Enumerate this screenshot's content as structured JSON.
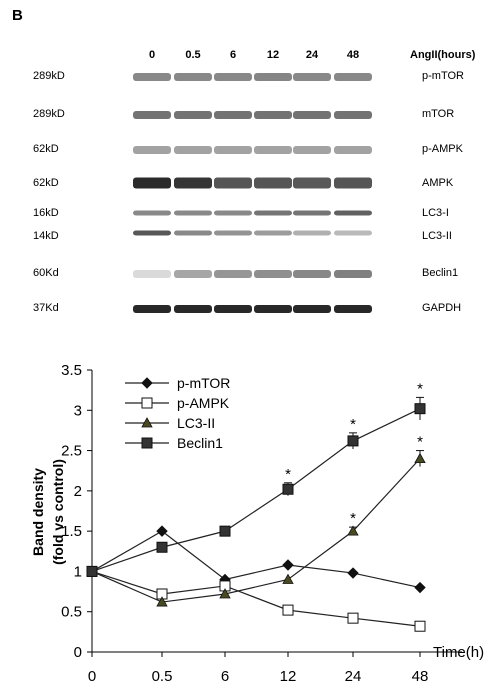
{
  "panel_letter": "B",
  "blot": {
    "header_label": "AngII(hours)",
    "lanes": [
      "0",
      "0.5",
      "6",
      "12",
      "24",
      "48"
    ],
    "rows": [
      {
        "mw": "289kD",
        "name": "p-mTOR",
        "intensity": [
          0.8,
          0.8,
          0.8,
          0.82,
          0.8,
          0.8
        ],
        "shade": "#6a6a6a"
      },
      {
        "mw": "289kD",
        "name": "mTOR",
        "intensity": [
          0.85,
          0.85,
          0.85,
          0.85,
          0.85,
          0.85
        ],
        "shade": "#5a5a5a"
      },
      {
        "mw": "62kD",
        "name": "p-AMPK",
        "intensity": [
          0.7,
          0.7,
          0.7,
          0.7,
          0.7,
          0.7
        ],
        "shade": "#7a7a7a"
      },
      {
        "mw": "62kD",
        "name": "AMPK",
        "intensity": [
          1.0,
          0.95,
          0.8,
          0.8,
          0.78,
          0.8
        ],
        "shade": "#2a2a2a"
      },
      {
        "mw": "16kD",
        "name": "LC3-I",
        "intensity": [
          0.6,
          0.6,
          0.6,
          0.7,
          0.7,
          0.8
        ],
        "shade": "#3a3a3a"
      },
      {
        "mw": "14kD",
        "name": "LC3-II",
        "intensity": [
          0.85,
          0.6,
          0.55,
          0.5,
          0.4,
          0.35
        ],
        "shade": "#3a3a3a"
      },
      {
        "mw": "60Kd",
        "name": "Beclin1",
        "intensity": [
          0.25,
          0.6,
          0.7,
          0.75,
          0.8,
          0.85
        ],
        "shade": "#6a6a6a"
      },
      {
        "mw": "37Kd",
        "name": "GAPDH",
        "intensity": [
          0.9,
          0.9,
          0.9,
          0.9,
          0.9,
          0.9
        ],
        "shade": "#111111"
      }
    ]
  },
  "chart_data": {
    "type": "line",
    "categories": [
      "0",
      "0.5",
      "6",
      "12",
      "24",
      "48"
    ],
    "xlabel": "Time(h)",
    "ylabel_lines": [
      "Band density",
      "(fold vs control)"
    ],
    "ylim": [
      0,
      3.5
    ],
    "yticks": [
      "0",
      "0.5",
      "1",
      "1.5",
      "2",
      "2.5",
      "3",
      "3.5"
    ],
    "grid": false,
    "legend_position": "top-left",
    "series": [
      {
        "name": "p-mTOR",
        "marker": "diamond",
        "values": [
          1.0,
          1.5,
          0.9,
          1.08,
          0.98,
          0.8
        ],
        "errors": [
          0,
          0,
          0,
          0,
          0,
          0
        ],
        "significant": [
          false,
          false,
          false,
          false,
          false,
          false
        ]
      },
      {
        "name": "p-AMPK",
        "marker": "square-open",
        "values": [
          1.0,
          0.72,
          0.82,
          0.52,
          0.42,
          0.32
        ],
        "errors": [
          0,
          0,
          0,
          0,
          0,
          0
        ],
        "significant": [
          false,
          false,
          false,
          false,
          false,
          false
        ]
      },
      {
        "name": "LC3-II",
        "marker": "triangle",
        "values": [
          1.0,
          0.62,
          0.72,
          0.9,
          1.5,
          2.4
        ],
        "errors": [
          0,
          0,
          0,
          0,
          0.05,
          0.1
        ],
        "significant": [
          false,
          false,
          false,
          false,
          true,
          true
        ]
      },
      {
        "name": "Beclin1",
        "marker": "square",
        "values": [
          1.0,
          1.3,
          1.5,
          2.02,
          2.62,
          3.02
        ],
        "errors": [
          0,
          0,
          0,
          0.08,
          0.1,
          0.14
        ],
        "significant": [
          false,
          false,
          false,
          true,
          true,
          true
        ]
      }
    ],
    "significance_mark": "*"
  }
}
